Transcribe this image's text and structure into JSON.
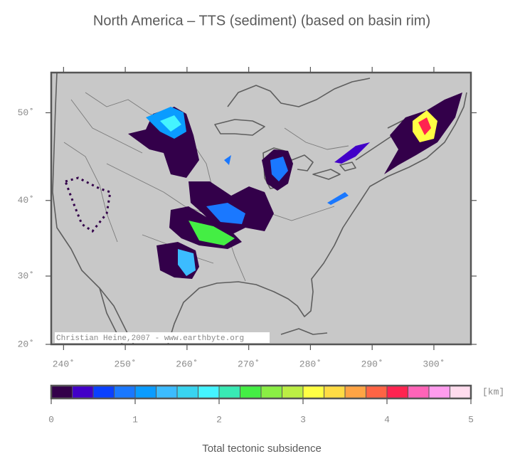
{
  "map": {
    "title": "North America – TTS (sediment) (based on basin rim)",
    "projection": "mercator",
    "xlim": [
      238,
      306
    ],
    "ylim": [
      20,
      54
    ],
    "xticks": [
      {
        "value": 240,
        "label": "240˚"
      },
      {
        "value": 250,
        "label": "250˚"
      },
      {
        "value": 260,
        "label": "260˚"
      },
      {
        "value": 270,
        "label": "270˚"
      },
      {
        "value": 280,
        "label": "280˚"
      },
      {
        "value": 290,
        "label": "290˚"
      },
      {
        "value": 300,
        "label": "300˚"
      }
    ],
    "yticks": [
      {
        "value": 20,
        "label": "20˚"
      },
      {
        "value": 30,
        "label": "30˚"
      },
      {
        "value": 40,
        "label": "40˚"
      },
      {
        "value": 50,
        "label": "50˚"
      }
    ],
    "credit": "Christian Heine,2007 - www.earthbyte.org"
  },
  "colorbar": {
    "range": [
      0,
      5
    ],
    "ticks": [
      0,
      1,
      2,
      3,
      4,
      5
    ],
    "colors": [
      "#33004a",
      "#4200c8",
      "#0a40ff",
      "#1a78ff",
      "#0a9cff",
      "#3cbcff",
      "#38d4f0",
      "#44f4ff",
      "#38eab4",
      "#44ee44",
      "#8aee44",
      "#bcee44",
      "#ffff44",
      "#ffdc44",
      "#ffa444",
      "#ff6444",
      "#ff2450",
      "#ff64b8",
      "#ff9cee",
      "#ffdcee"
    ],
    "unit": "[km]",
    "label": "Total tectonic subsidence"
  }
}
